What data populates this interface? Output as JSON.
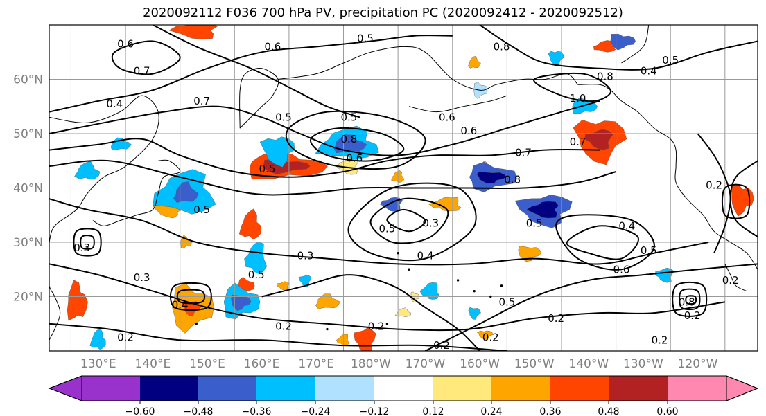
{
  "chart_data": {
    "type": "contour-map",
    "title": "2020092112 F036 700 hPa PV, precipitation PC (2020092412 - 2020092512)",
    "lat_labels": [
      "60°N",
      "50°N",
      "40°N",
      "30°N",
      "20°N"
    ],
    "lat_values": [
      60,
      50,
      40,
      30,
      20
    ],
    "lon_labels": [
      "130°E",
      "140°E",
      "150°E",
      "160°E",
      "170°E",
      "180°W",
      "170°W",
      "160°W",
      "150°W",
      "140°W",
      "130°W",
      "120°W"
    ],
    "lon_values": [
      130,
      140,
      150,
      160,
      170,
      180,
      190,
      200,
      210,
      220,
      230,
      240
    ],
    "lat_range": [
      10,
      70
    ],
    "lon_range": [
      121,
      251
    ],
    "grid": true,
    "colorbar": {
      "ticks": [
        "−0.60",
        "−0.48",
        "−0.36",
        "−0.24",
        "−0.12",
        "0.12",
        "0.24",
        "0.36",
        "0.48",
        "0.60"
      ],
      "tick_values": [
        -0.6,
        -0.48,
        -0.36,
        -0.24,
        -0.12,
        0.12,
        0.24,
        0.36,
        0.48,
        0.6
      ],
      "colors": [
        "#9932cc",
        "#000080",
        "#3a5fcd",
        "#00bfff",
        "#b0e2ff",
        "#ffffff",
        "#ffe87c",
        "#ffa500",
        "#ff4500",
        "#b22222",
        "#ff88b0"
      ]
    },
    "contour_labels": [
      {
        "text": "0.6",
        "lon": 135,
        "lat": 66.5
      },
      {
        "text": "0.7",
        "lon": 138,
        "lat": 61.5
      },
      {
        "text": "0.4",
        "lon": 133,
        "lat": 55.5
      },
      {
        "text": "0.7",
        "lon": 149,
        "lat": 56
      },
      {
        "text": "0.6",
        "lon": 162,
        "lat": 66
      },
      {
        "text": "0.5",
        "lon": 179,
        "lat": 67.5
      },
      {
        "text": "0.5",
        "lon": 164,
        "lat": 53
      },
      {
        "text": "0.5",
        "lon": 176,
        "lat": 53
      },
      {
        "text": "0.8",
        "lon": 176,
        "lat": 49
      },
      {
        "text": "0.6",
        "lon": 177,
        "lat": 45.5
      },
      {
        "text": "0.5",
        "lon": 161,
        "lat": 43.5
      },
      {
        "text": "0.6",
        "lon": 194,
        "lat": 53
      },
      {
        "text": "0.6",
        "lon": 198,
        "lat": 50.5
      },
      {
        "text": "0.7",
        "lon": 208,
        "lat": 46.5
      },
      {
        "text": "0.8",
        "lon": 206,
        "lat": 41.5
      },
      {
        "text": "1.0",
        "lon": 218,
        "lat": 56.5
      },
      {
        "text": "0.7",
        "lon": 218,
        "lat": 48.5
      },
      {
        "text": "0.8",
        "lon": 223,
        "lat": 60.5
      },
      {
        "text": "0.8",
        "lon": 204,
        "lat": 66
      },
      {
        "text": "0.4",
        "lon": 231,
        "lat": 61.5
      },
      {
        "text": "0.5",
        "lon": 235,
        "lat": 63.5
      },
      {
        "text": "0.2",
        "lon": 243,
        "lat": 40.5
      },
      {
        "text": "0.4",
        "lon": 227,
        "lat": 33
      },
      {
        "text": "0.5",
        "lon": 231,
        "lat": 28.5
      },
      {
        "text": "0.6",
        "lon": 226,
        "lat": 25
      },
      {
        "text": "0.2",
        "lon": 246,
        "lat": 23
      },
      {
        "text": "0.2",
        "lon": 239,
        "lat": 16.5
      },
      {
        "text": "0.2",
        "lon": 233,
        "lat": 12
      },
      {
        "text": "0.8",
        "lon": 238,
        "lat": 19
      },
      {
        "text": "0.5",
        "lon": 210,
        "lat": 33.5
      },
      {
        "text": "0.4",
        "lon": 190,
        "lat": 27.5
      },
      {
        "text": "0.3",
        "lon": 191,
        "lat": 33.5
      },
      {
        "text": "0.5",
        "lon": 183,
        "lat": 32.5
      },
      {
        "text": "0.3",
        "lon": 168,
        "lat": 27.5
      },
      {
        "text": "0.5",
        "lon": 159,
        "lat": 24
      },
      {
        "text": "0.3",
        "lon": 138,
        "lat": 23.5
      },
      {
        "text": "0.4",
        "lon": 145,
        "lat": 18.5
      },
      {
        "text": "0.5",
        "lon": 149,
        "lat": 36
      },
      {
        "text": "0.2",
        "lon": 135,
        "lat": 12.5
      },
      {
        "text": "0.2",
        "lon": 164,
        "lat": 14.5
      },
      {
        "text": "0.2",
        "lon": 181,
        "lat": 14.5
      },
      {
        "text": "0.2",
        "lon": 193,
        "lat": 11
      },
      {
        "text": "0.2",
        "lon": 202,
        "lat": 12.5
      },
      {
        "text": "0.5",
        "lon": 205,
        "lat": 19
      },
      {
        "text": "0.2",
        "lon": 214,
        "lat": 16
      },
      {
        "text": "0.3",
        "lon": 127,
        "lat": 29
      }
    ]
  }
}
